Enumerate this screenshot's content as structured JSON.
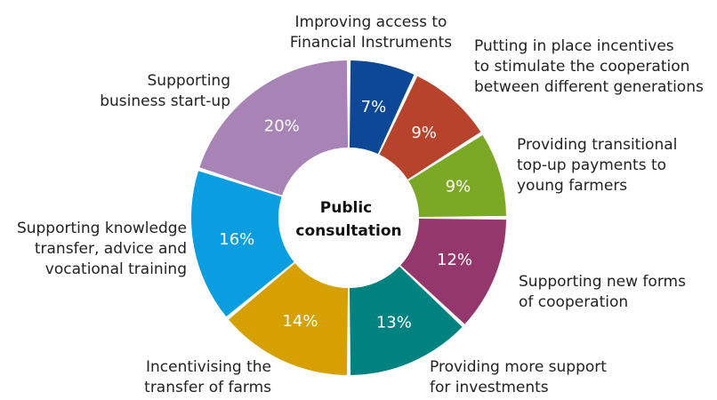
{
  "chart_data": {
    "type": "pie",
    "variant": "donut",
    "center_label": [
      "Public",
      "consultation"
    ],
    "unit": "%",
    "slices": [
      {
        "label": [
          "Improving access to",
          "Financial Instruments"
        ],
        "value": 7,
        "display": "7%",
        "color": "#0c4896"
      },
      {
        "label": [
          "Putting in place incentives",
          "to stimulate the cooperation",
          "between different generations"
        ],
        "value": 9,
        "display": "9%",
        "color": "#b8432d"
      },
      {
        "label": [
          "Providing transitional",
          "top-up payments to",
          "young farmers"
        ],
        "value": 9,
        "display": "9%",
        "color": "#7ca925"
      },
      {
        "label": [
          "Supporting new forms",
          "of cooperation"
        ],
        "value": 12,
        "display": "12%",
        "color": "#93376c"
      },
      {
        "label": [
          "Providing more support",
          "for investments"
        ],
        "value": 13,
        "display": "13%",
        "color": "#008281"
      },
      {
        "label": [
          "Incentivising the",
          "transfer of farms"
        ],
        "value": 14,
        "display": "14%",
        "color": "#d6a100"
      },
      {
        "label": [
          "Supporting knowledge",
          "transfer, advice and",
          "vocational training"
        ],
        "value": 16,
        "display": "16%",
        "color": "#0a9de0"
      },
      {
        "label": [
          "Supporting",
          "business start-up"
        ],
        "value": 20,
        "display": "20%",
        "color": "#a783b6"
      }
    ]
  }
}
